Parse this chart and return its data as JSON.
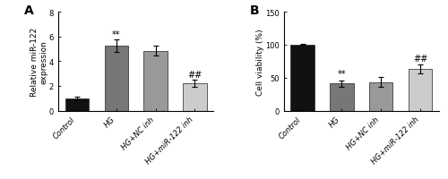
{
  "panel_A": {
    "categories": [
      "Control",
      "HG",
      "HG+NC inh",
      "HG+miR-122 inh"
    ],
    "values": [
      1.0,
      5.25,
      4.85,
      2.2
    ],
    "errors": [
      0.1,
      0.48,
      0.38,
      0.28
    ],
    "bar_colors": [
      "#111111",
      "#777777",
      "#999999",
      "#cccccc"
    ],
    "ylabel": "Relative miR-122\nexpression",
    "ylim": [
      0,
      8
    ],
    "yticks": [
      0,
      2,
      4,
      6,
      8
    ],
    "annotations": [
      {
        "bar": 1,
        "text": "**",
        "y": 5.85
      },
      {
        "bar": 3,
        "text": "##",
        "y": 2.6
      }
    ],
    "panel_label": "A"
  },
  "panel_B": {
    "categories": [
      "Control",
      "HG",
      "HG+NC inh",
      "HG+miR-122 inh"
    ],
    "values": [
      100.5,
      41.0,
      43.0,
      63.0
    ],
    "errors": [
      1.2,
      5.0,
      7.5,
      6.5
    ],
    "bar_colors": [
      "#111111",
      "#777777",
      "#999999",
      "#cccccc"
    ],
    "ylabel": "Cell viability (%)",
    "ylim": [
      0,
      150
    ],
    "yticks": [
      0,
      50,
      100,
      150
    ],
    "annotations": [
      {
        "bar": 1,
        "text": "**",
        "y": 50
      },
      {
        "bar": 3,
        "text": "##",
        "y": 73
      }
    ],
    "panel_label": "B"
  },
  "tick_label_fontsize": 6.0,
  "ylabel_fontsize": 6.5,
  "annotation_fontsize": 7,
  "panel_label_fontsize": 10,
  "bar_width": 0.6,
  "error_capsize": 2,
  "error_linewidth": 0.8,
  "bar_edgecolor": "#222222",
  "bar_edgewidth": 0.5
}
